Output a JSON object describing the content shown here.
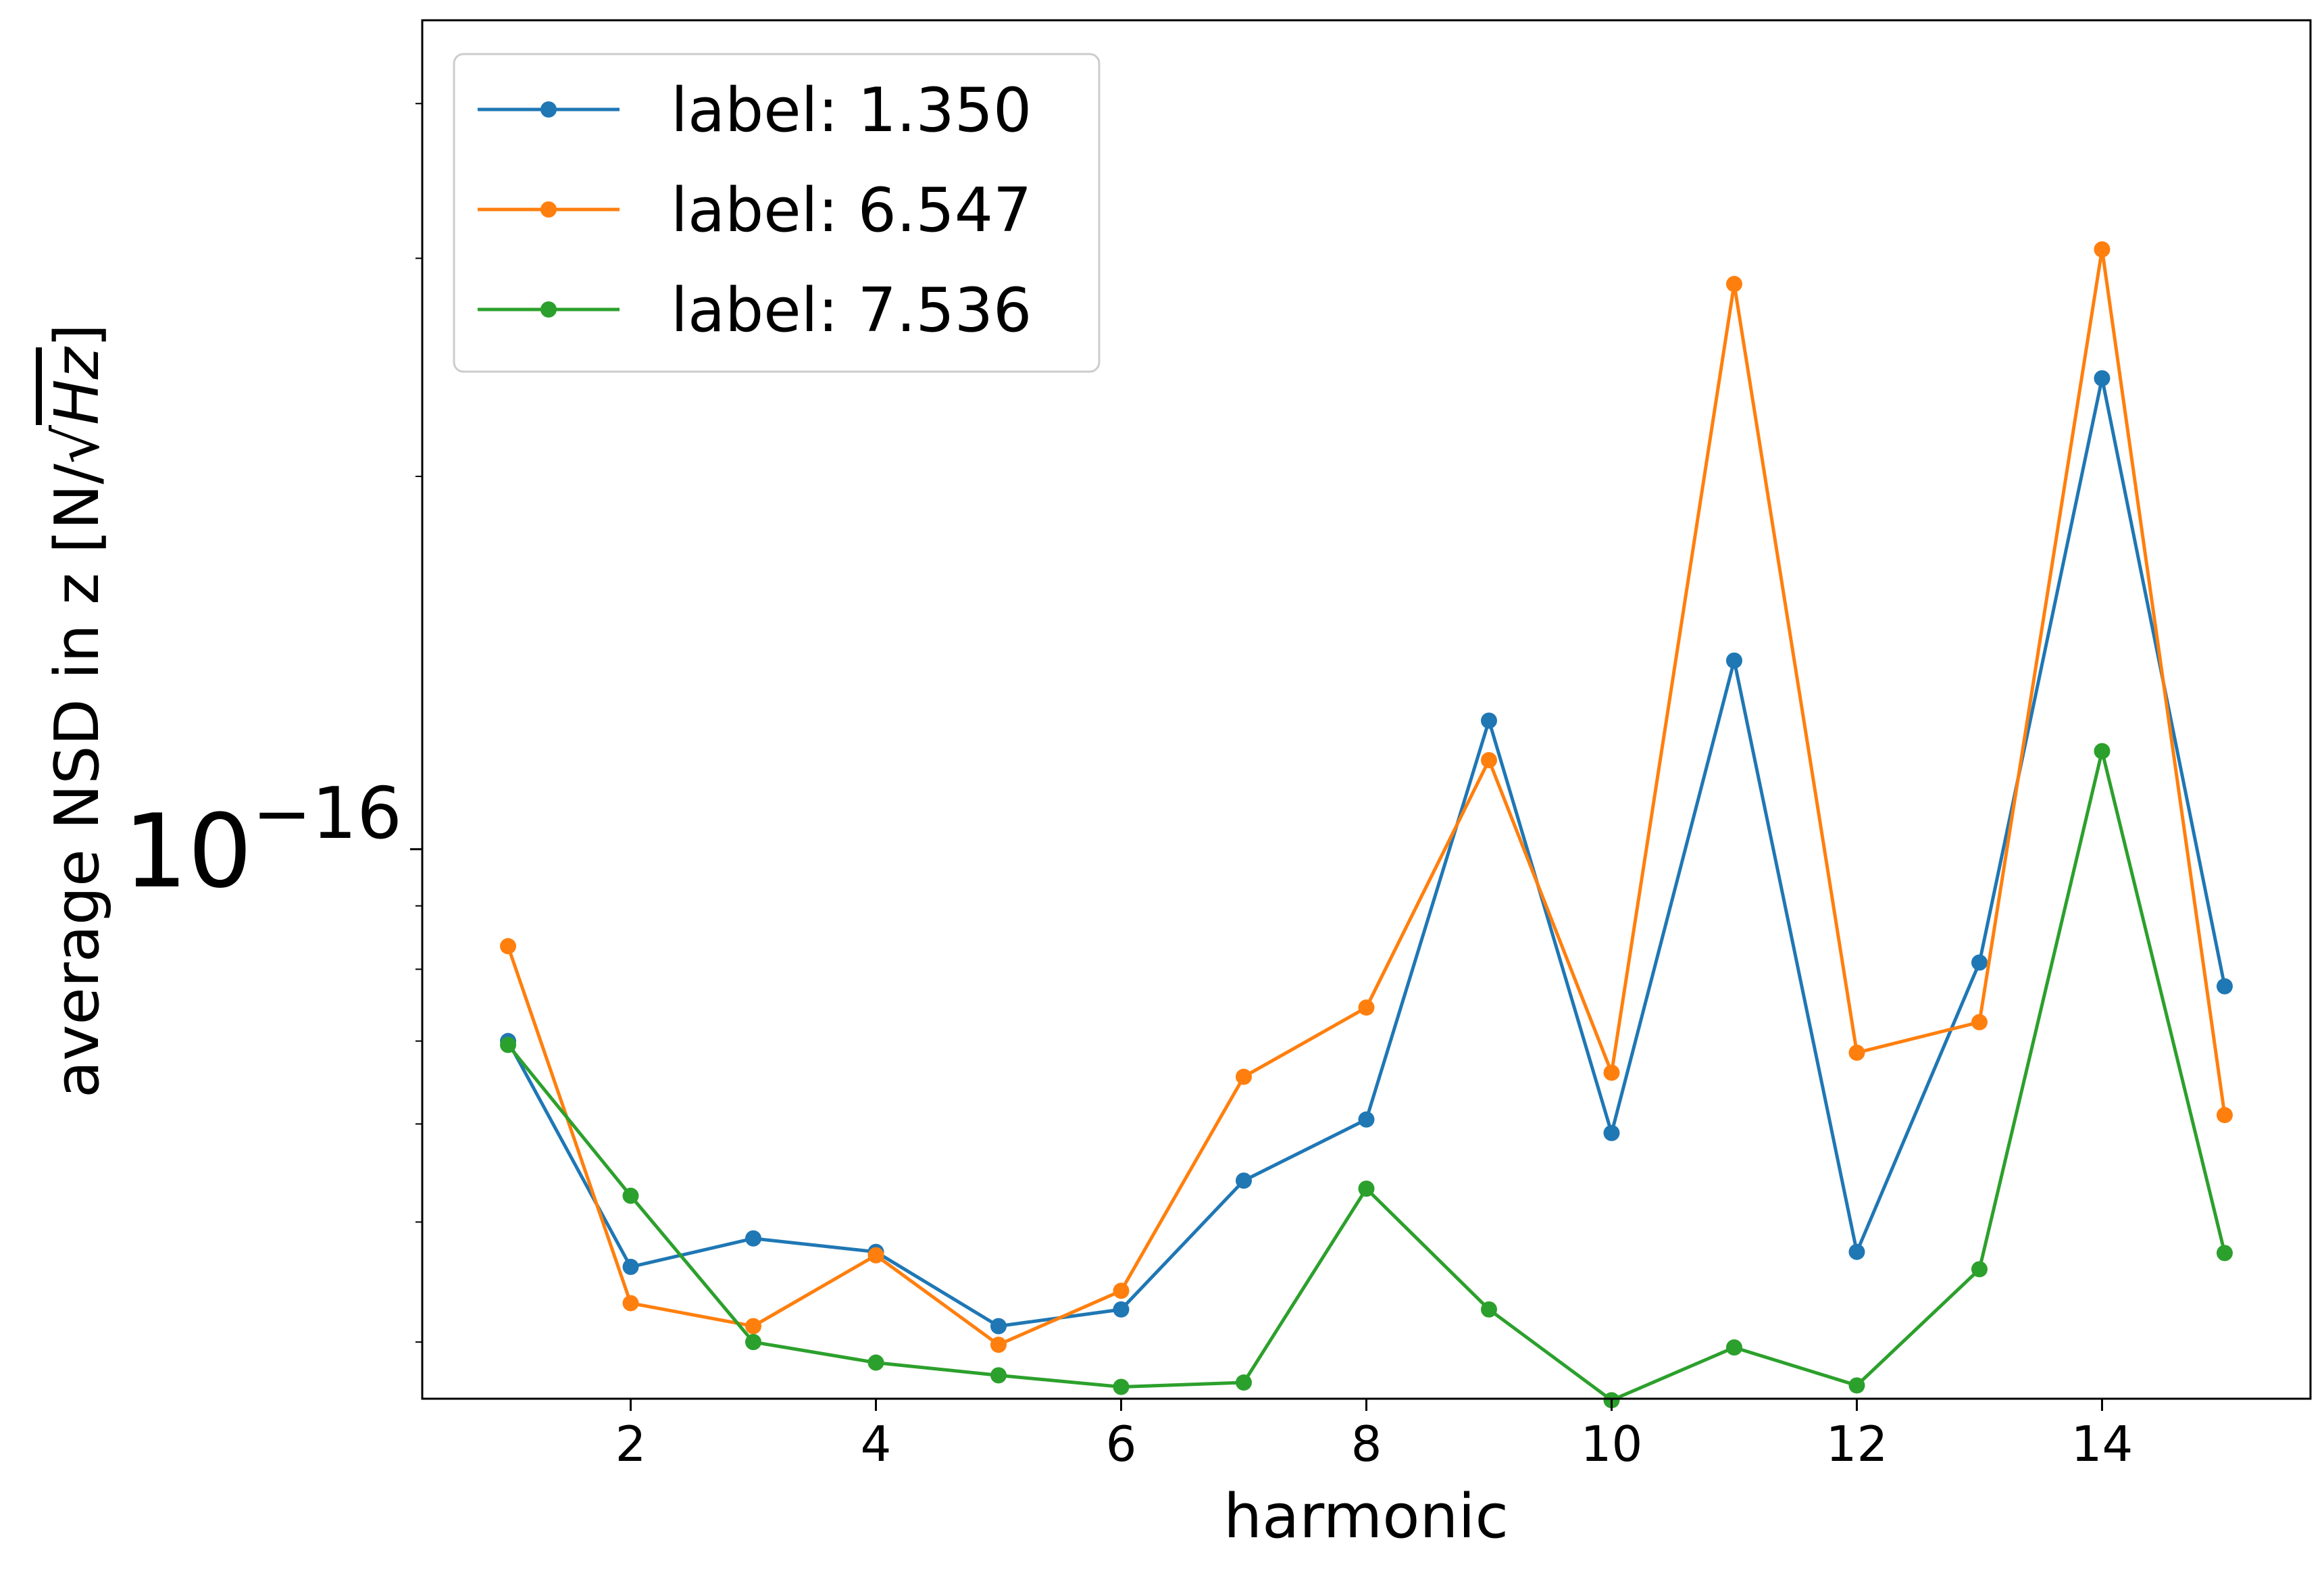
{
  "chart_data": {
    "type": "line",
    "title": "",
    "xlabel": "harmonic",
    "ylabel": "average NSD in z [N/√Hz]",
    "ylabel_parts": {
      "prefix": "average NSD in z [N/",
      "sqrt": "√",
      "radicand": "Hz",
      "suffix": "]"
    },
    "xlim": [
      0.3,
      15.7
    ],
    "ylim": [
      3.6e-17,
      4.67e-16
    ],
    "yscale": "log",
    "grid": false,
    "legend_position": "upper-left",
    "x": [
      1,
      2,
      3,
      4,
      5,
      6,
      7,
      8,
      9,
      10,
      11,
      12,
      13,
      14,
      15
    ],
    "xticks": [
      2,
      4,
      6,
      8,
      10,
      12,
      14
    ],
    "xtick_labels": [
      "2",
      "4",
      "6",
      "8",
      10,
      "12",
      "14"
    ],
    "ytick_major": {
      "value": 1e-16,
      "base": "10",
      "exponent": "−16"
    },
    "ytick_minor": [
      4e-17,
      5e-17,
      6e-17,
      7e-17,
      8e-17,
      9e-17,
      2e-16,
      3e-16,
      4e-16
    ],
    "series": [
      {
        "name": "label: 1.350",
        "color": "#1f77b4",
        "values": [
          7e-17,
          4.6e-17,
          4.85e-17,
          4.73e-17,
          4.12e-17,
          4.25e-17,
          5.4e-17,
          6.05e-17,
          1.27e-16,
          5.9e-17,
          1.42e-16,
          4.73e-17,
          8.1e-17,
          2.4e-16,
          7.75e-17
        ]
      },
      {
        "name": "label: 6.547",
        "color": "#ff7f0e",
        "values": [
          8.35e-17,
          4.3e-17,
          4.12e-17,
          4.7e-17,
          3.98e-17,
          4.4e-17,
          6.55e-17,
          7.45e-17,
          1.18e-16,
          6.6e-17,
          2.86e-16,
          6.85e-17,
          7.25e-17,
          3.05e-16,
          6.1e-17
        ]
      },
      {
        "name": "label: 7.536",
        "color": "#2ca02c",
        "values": [
          6.95e-17,
          5.25e-17,
          4e-17,
          3.85e-17,
          3.76e-17,
          3.68e-17,
          3.71e-17,
          5.32e-17,
          4.25e-17,
          3.59e-17,
          3.96e-17,
          3.69e-17,
          4.58e-17,
          1.2e-16,
          4.72e-17
        ]
      }
    ]
  }
}
